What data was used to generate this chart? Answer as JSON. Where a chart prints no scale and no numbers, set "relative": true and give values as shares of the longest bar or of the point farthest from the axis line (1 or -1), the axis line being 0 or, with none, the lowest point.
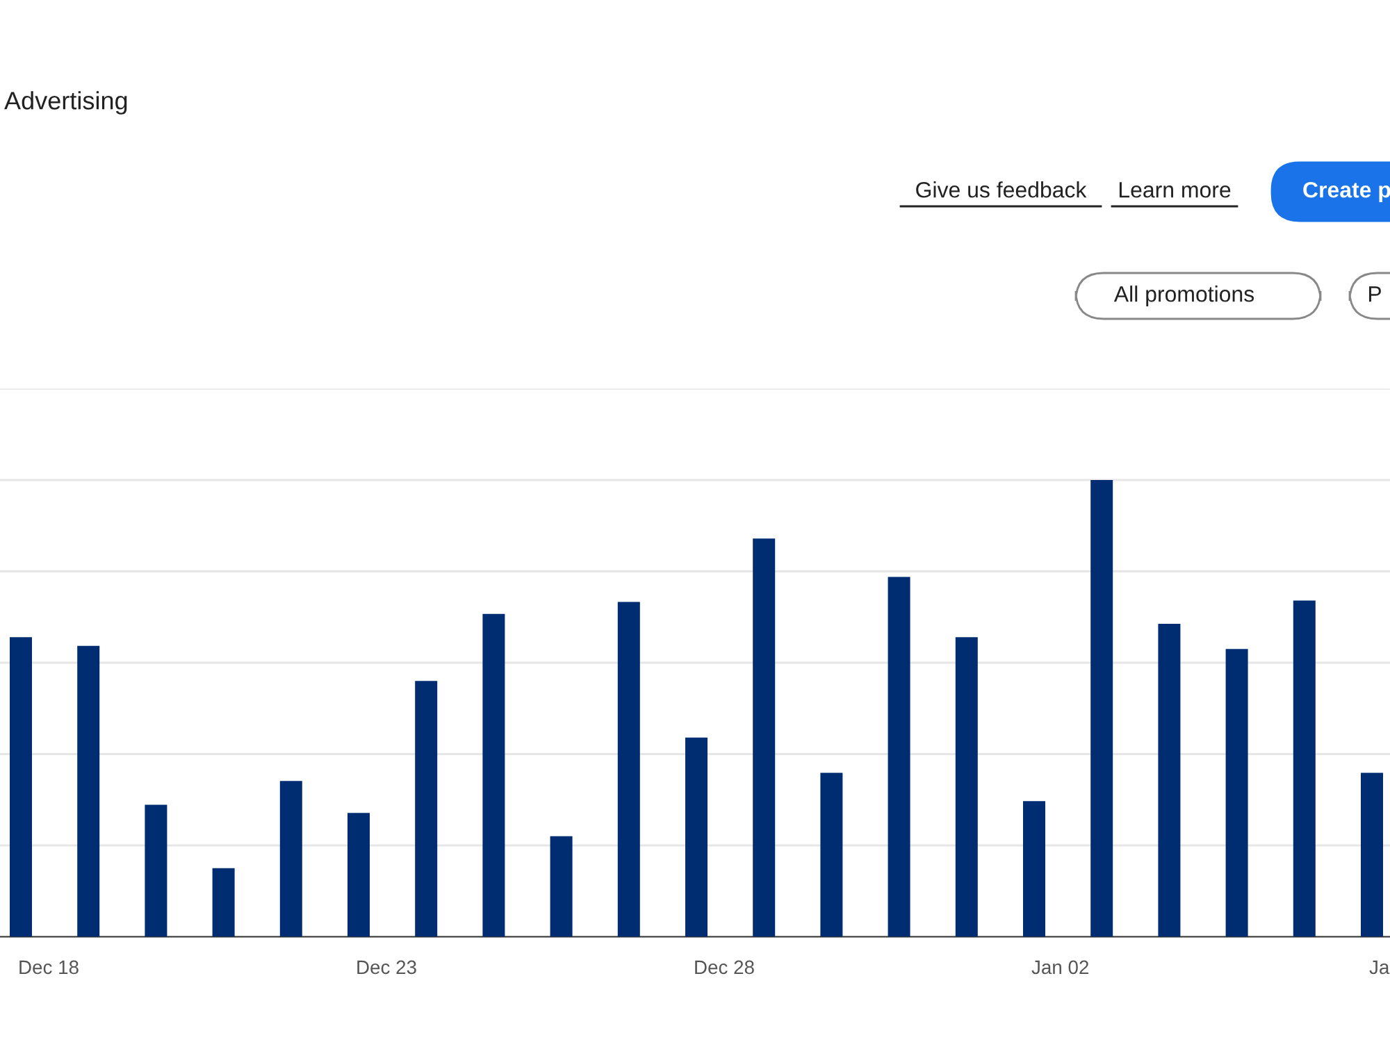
{
  "chart_data": {
    "type": "bar",
    "title": "Advertising",
    "annotations": [
      "Give us feedback",
      "Learn more",
      "Create p",
      "All promotions",
      "P"
    ],
    "categories": [
      "Dec 18",
      null,
      null,
      null,
      null,
      "Dec 23",
      null,
      null,
      null,
      null,
      "Dec 28",
      null,
      null,
      null,
      null,
      "Jan 02",
      null,
      null,
      null,
      null,
      "Ja"
    ],
    "values": [
      0.656,
      0.637,
      0.289,
      0.15,
      0.341,
      0.271,
      0.56,
      0.707,
      0.22,
      0.733,
      0.436,
      0.872,
      0.359,
      0.788,
      0.656,
      0.297,
      1,
      0.685,
      0.63,
      0.736,
      0.359
    ],
    "color": "#002d72",
    "relative": true,
    "grid": "y"
  }
}
